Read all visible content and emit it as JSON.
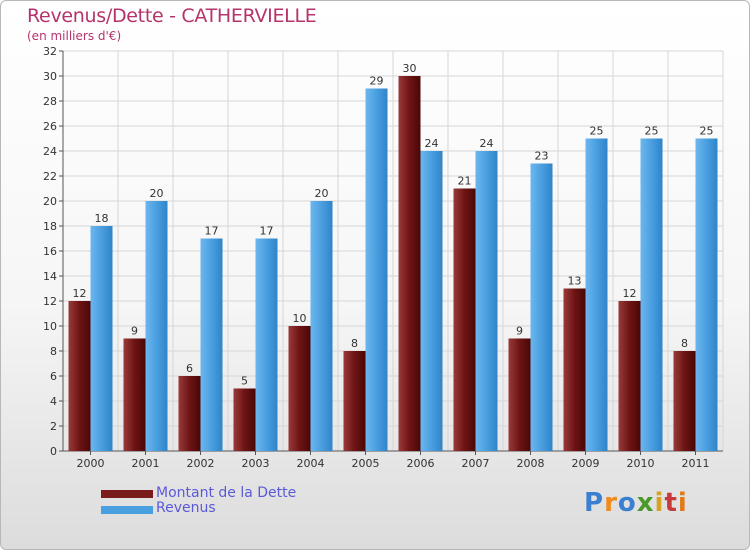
{
  "title": "Revenus/Dette - CATHERVIELLE",
  "subtitle": "(en milliers d'€)",
  "logo": {
    "text": "Proxiti",
    "letter_colors": [
      "#3a7fd0",
      "#f08a1a",
      "#3a7fd0",
      "#4a9a2a",
      "#d8a21e",
      "#c8393b",
      "#e07a1a"
    ]
  },
  "colors": {
    "dette": "#7a1c1c",
    "revenus": "#4a9fe0",
    "title": "#b5336b",
    "legend_text": "#5a5ad8"
  },
  "chart_data": {
    "type": "bar",
    "categories": [
      "2000",
      "2001",
      "2002",
      "2003",
      "2004",
      "2005",
      "2006",
      "2007",
      "2008",
      "2009",
      "2010",
      "2011"
    ],
    "series": [
      {
        "name": "Montant de la Dette",
        "values": [
          12,
          9,
          6,
          5,
          10,
          8,
          30,
          21,
          9,
          13,
          12,
          8
        ]
      },
      {
        "name": "Revenus",
        "values": [
          18,
          20,
          17,
          17,
          20,
          29,
          24,
          24,
          23,
          25,
          25,
          25
        ]
      }
    ],
    "ylim": [
      0,
      32
    ],
    "yticks": [
      0,
      2,
      4,
      6,
      8,
      10,
      12,
      14,
      16,
      18,
      20,
      22,
      24,
      26,
      28,
      30,
      32
    ],
    "grid": true,
    "legend_position": "bottom-left"
  }
}
